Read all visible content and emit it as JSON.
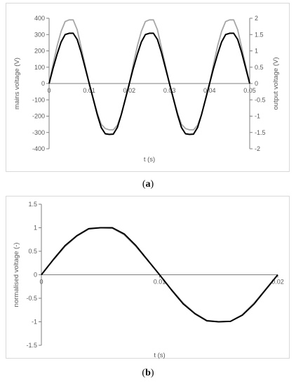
{
  "captions": {
    "a_open": "(",
    "a_letter": "a",
    "a_close": ")",
    "b_open": "(",
    "b_letter": "b",
    "b_close": ")"
  },
  "chart_data": [
    {
      "id": "a",
      "type": "line",
      "xlabel": "t (s)",
      "ylabel": "mains voltage (V)",
      "y2label": "output voltage (V)",
      "xlim": [
        0,
        0.05
      ],
      "ylim": [
        -400,
        400
      ],
      "y2lim": [
        -2,
        2
      ],
      "x_ticks": [
        0,
        0.01,
        0.02,
        0.03,
        0.04,
        0.05
      ],
      "x_tick_labels": [
        "0",
        "0.01",
        "0.02",
        "0.03",
        "0.04",
        "0.05"
      ],
      "y_ticks": [
        400,
        300,
        200,
        100,
        0,
        -100,
        -200,
        -300,
        -400
      ],
      "y_tick_labels": [
        "400",
        "300",
        "200",
        "100",
        "0",
        "-100",
        "-200",
        "-300",
        "-400"
      ],
      "y2_ticks": [
        2,
        1.5,
        1,
        0.5,
        0,
        -0.5,
        -1,
        -1.5,
        -2
      ],
      "y2_tick_labels": [
        "2",
        "1.5",
        "1",
        "0.5",
        "0",
        "-0.5",
        "-1",
        "-1.5",
        "-2"
      ],
      "grid": false,
      "series": [
        {
          "axis": "y2",
          "color": "#a6a6a6",
          "x": [
            0,
            0.001,
            0.002,
            0.003,
            0.004,
            0.005,
            0.006,
            0.007,
            0.008,
            0.009,
            0.01,
            0.011,
            0.012,
            0.013,
            0.014,
            0.015,
            0.016,
            0.017,
            0.018,
            0.019,
            0.02,
            0.021,
            0.022,
            0.023,
            0.024,
            0.025,
            0.026,
            0.027,
            0.028,
            0.029,
            0.03,
            0.031,
            0.032,
            0.033,
            0.034,
            0.035,
            0.036,
            0.037,
            0.038,
            0.039,
            0.04,
            0.041,
            0.042,
            0.043,
            0.044,
            0.045,
            0.046,
            0.047,
            0.048,
            0.049,
            0.05
          ],
          "values": [
            0,
            0.6,
            1.15,
            1.6,
            1.9,
            1.95,
            1.95,
            1.65,
            1.1,
            0.55,
            0,
            -0.45,
            -0.9,
            -1.25,
            -1.38,
            -1.42,
            -1.42,
            -1.28,
            -0.95,
            -0.5,
            0,
            0.6,
            1.15,
            1.6,
            1.9,
            1.95,
            1.95,
            1.65,
            1.1,
            0.55,
            0,
            -0.45,
            -0.9,
            -1.25,
            -1.38,
            -1.42,
            -1.42,
            -1.28,
            -0.95,
            -0.5,
            0,
            0.6,
            1.15,
            1.6,
            1.9,
            1.95,
            1.95,
            1.65,
            1.1,
            0.55,
            0
          ]
        },
        {
          "axis": "y",
          "color": "#000000",
          "x": [
            0,
            0.001,
            0.002,
            0.003,
            0.004,
            0.005,
            0.006,
            0.007,
            0.008,
            0.009,
            0.01,
            0.011,
            0.012,
            0.013,
            0.014,
            0.015,
            0.016,
            0.017,
            0.018,
            0.019,
            0.02,
            0.021,
            0.022,
            0.023,
            0.024,
            0.025,
            0.026,
            0.027,
            0.028,
            0.029,
            0.03,
            0.031,
            0.032,
            0.033,
            0.034,
            0.035,
            0.036,
            0.037,
            0.038,
            0.039,
            0.04,
            0.041,
            0.042,
            0.043,
            0.044,
            0.045,
            0.046,
            0.047,
            0.048,
            0.049,
            0.05
          ],
          "values": [
            0,
            95,
            180,
            255,
            300,
            308,
            308,
            270,
            190,
            95,
            0,
            -95,
            -190,
            -270,
            -308,
            -312,
            -310,
            -270,
            -190,
            -95,
            0,
            95,
            180,
            255,
            300,
            308,
            308,
            270,
            190,
            95,
            0,
            -95,
            -190,
            -270,
            -308,
            -312,
            -310,
            -270,
            -190,
            -95,
            0,
            95,
            180,
            255,
            300,
            308,
            308,
            270,
            190,
            95,
            0
          ]
        }
      ]
    },
    {
      "id": "b",
      "type": "line",
      "xlabel": "t (s)",
      "ylabel": "normalised voltage (-)",
      "xlim": [
        0,
        0.02
      ],
      "ylim": [
        -1.5,
        1.5
      ],
      "x_ticks": [
        0,
        0.01,
        0.02
      ],
      "x_tick_labels": [
        "0",
        "0.01",
        "0.02"
      ],
      "y_ticks": [
        1.5,
        1,
        0.5,
        0,
        -0.5,
        -1,
        -1.5
      ],
      "y_tick_labels": [
        "1.5",
        "1",
        "0.5",
        "0",
        "-0.5",
        "-1",
        "-1.5"
      ],
      "grid": false,
      "series": [
        {
          "color": "#a6a6a6",
          "x": [
            0,
            0.001,
            0.002,
            0.003,
            0.004,
            0.005,
            0.006,
            0.007,
            0.008,
            0.009,
            0.01,
            0.011,
            0.012,
            0.013,
            0.014,
            0.015,
            0.016,
            0.017,
            0.018,
            0.019,
            0.02
          ],
          "values": [
            0,
            0.31,
            0.6,
            0.82,
            0.97,
            1.0,
            0.99,
            0.85,
            0.6,
            0.3,
            0,
            -0.31,
            -0.6,
            -0.82,
            -0.97,
            -1.0,
            -0.99,
            -0.85,
            -0.6,
            -0.3,
            0
          ]
        },
        {
          "color": "#000000",
          "x": [
            0,
            0.001,
            0.002,
            0.003,
            0.004,
            0.005,
            0.006,
            0.007,
            0.008,
            0.009,
            0.01,
            0.011,
            0.012,
            0.013,
            0.014,
            0.015,
            0.016,
            0.017,
            0.018,
            0.019,
            0.02
          ],
          "values": [
            0,
            0.32,
            0.62,
            0.83,
            0.98,
            1.0,
            1.0,
            0.87,
            0.62,
            0.31,
            0,
            -0.32,
            -0.62,
            -0.83,
            -0.98,
            -1.0,
            -0.99,
            -0.86,
            -0.62,
            -0.31,
            0
          ]
        }
      ]
    }
  ]
}
